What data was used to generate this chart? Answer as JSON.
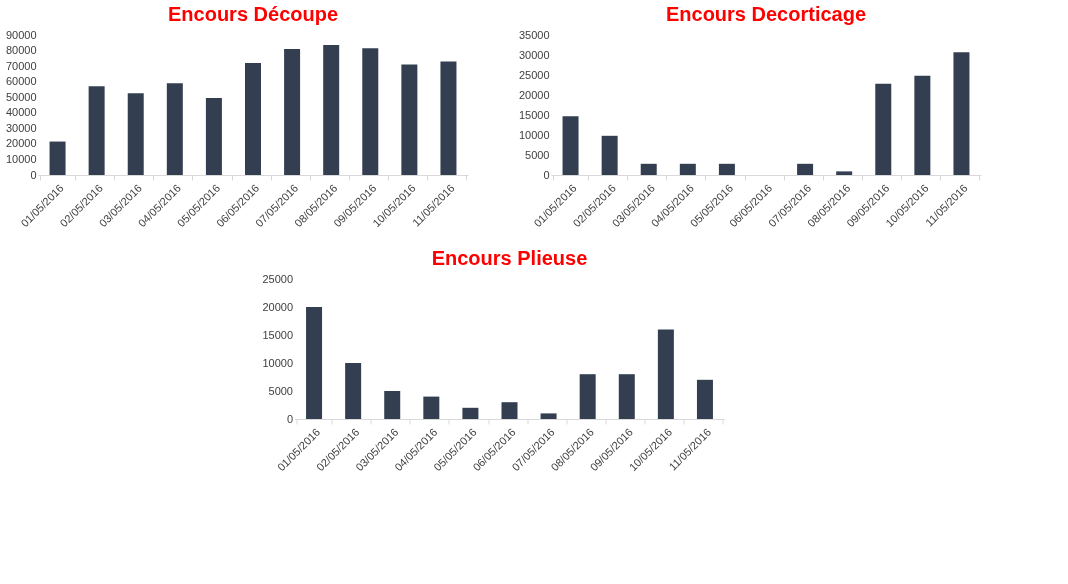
{
  "chart_data": [
    {
      "type": "bar",
      "title": "Encours Découpe",
      "categories": [
        "01/05/2016",
        "02/05/2016",
        "03/05/2016",
        "04/05/2016",
        "05/05/2016",
        "06/05/2016",
        "07/05/2016",
        "08/05/2016",
        "09/05/2016",
        "10/05/2016",
        "11/05/2016"
      ],
      "values": [
        21500,
        57000,
        52500,
        59000,
        49500,
        72000,
        81000,
        83500,
        81500,
        71000,
        73000
      ],
      "color": "#333f50",
      "ylim": [
        0,
        90000
      ],
      "yticks": [
        0,
        10000,
        20000,
        30000,
        40000,
        50000,
        60000,
        70000,
        80000,
        90000
      ]
    },
    {
      "type": "bar",
      "title": "Encours Decorticage",
      "categories": [
        "01/05/2016",
        "02/05/2016",
        "03/05/2016",
        "04/05/2016",
        "05/05/2016",
        "06/05/2016",
        "07/05/2016",
        "08/05/2016",
        "09/05/2016",
        "10/05/2016",
        "11/05/2016"
      ],
      "values": [
        14700,
        9800,
        2800,
        2800,
        2800,
        0,
        2800,
        900,
        22800,
        24800,
        30700
      ],
      "color": "#333f50",
      "ylim": [
        0,
        35000
      ],
      "yticks": [
        0,
        5000,
        10000,
        15000,
        20000,
        25000,
        30000,
        35000
      ]
    },
    {
      "type": "bar",
      "title": "Encours Plieuse",
      "categories": [
        "01/05/2016",
        "02/05/2016",
        "03/05/2016",
        "04/05/2016",
        "05/05/2016",
        "06/05/2016",
        "07/05/2016",
        "08/05/2016",
        "09/05/2016",
        "10/05/2016",
        "11/05/2016"
      ],
      "values": [
        20000,
        10000,
        5000,
        4000,
        2000,
        3000,
        1000,
        8000,
        8000,
        16000,
        7000
      ],
      "color": "#333f50",
      "ylim": [
        0,
        25000
      ],
      "yticks": [
        0,
        5000,
        10000,
        15000,
        20000,
        25000
      ]
    }
  ]
}
